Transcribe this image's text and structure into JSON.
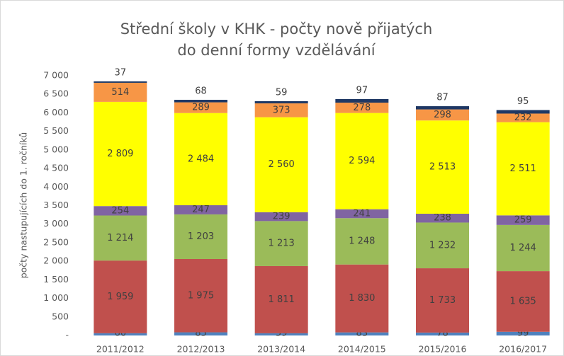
{
  "chart_data": {
    "type": "stacked_bar",
    "title": [
      "Střední školy v KHK - počty nově přijatých",
      "do denní formy vzdělávání"
    ],
    "y_axis_label": "počty nastupujících do 1. ročníků",
    "categories": [
      "2011/2012",
      "2012/2013",
      "2013/2014",
      "2014/2015",
      "2015/2016",
      "2016/2017"
    ],
    "series": [
      {
        "color": "#4f81bd",
        "values": [
          60,
          85,
          59,
          83,
          78,
          99
        ],
        "value_labels": [
          "60",
          "85",
          "59",
          "83",
          "78",
          "99"
        ]
      },
      {
        "color": "#c0504d",
        "values": [
          1959,
          1975,
          1811,
          1830,
          1733,
          1635
        ],
        "value_labels": [
          "1 959",
          "1 975",
          "1 811",
          "1 830",
          "1 733",
          "1 635"
        ]
      },
      {
        "color": "#9bbb59",
        "values": [
          1214,
          1203,
          1213,
          1248,
          1232,
          1244
        ],
        "value_labels": [
          "1 214",
          "1 203",
          "1 213",
          "1 248",
          "1 232",
          "1 244"
        ]
      },
      {
        "color": "#8064a2",
        "values": [
          254,
          247,
          239,
          241,
          238,
          259
        ],
        "value_labels": [
          "254",
          "247",
          "239",
          "241",
          "238",
          "259"
        ]
      },
      {
        "color": "#ffff00",
        "values": [
          2809,
          2484,
          2560,
          2594,
          2513,
          2511
        ],
        "value_labels": [
          "2 809",
          "2 484",
          "2 560",
          "2 594",
          "2 513",
          "2 511"
        ]
      },
      {
        "color": "#f79646",
        "values": [
          514,
          289,
          373,
          278,
          298,
          232
        ],
        "value_labels": [
          "514",
          "289",
          "373",
          "278",
          "298",
          "232"
        ]
      },
      {
        "color": "#1f3864",
        "values": [
          37,
          68,
          59,
          97,
          87,
          95
        ],
        "value_labels": [
          "37",
          "68",
          "59",
          "97",
          "87",
          "95"
        ]
      }
    ],
    "ylim": [
      0,
      7000
    ],
    "yticks": [
      {
        "value": 0,
        "label": "-"
      },
      500,
      {
        "value": 1000,
        "label": "1 000"
      },
      {
        "value": 1500,
        "label": "1 500"
      },
      {
        "value": 2000,
        "label": "2 000"
      },
      {
        "value": 2500,
        "label": "2 500"
      },
      {
        "value": 3000,
        "label": "3 000"
      },
      {
        "value": 3500,
        "label": "3 500"
      },
      {
        "value": 4000,
        "label": "4 000"
      },
      {
        "value": 4500,
        "label": "4 500"
      },
      {
        "value": 5000,
        "label": "5 000"
      },
      {
        "value": 5500,
        "label": "5 500"
      },
      {
        "value": 6000,
        "label": "6 000"
      },
      {
        "value": 6500,
        "label": "6 500"
      },
      {
        "value": 7000,
        "label": "7 000"
      }
    ],
    "grid": false
  }
}
